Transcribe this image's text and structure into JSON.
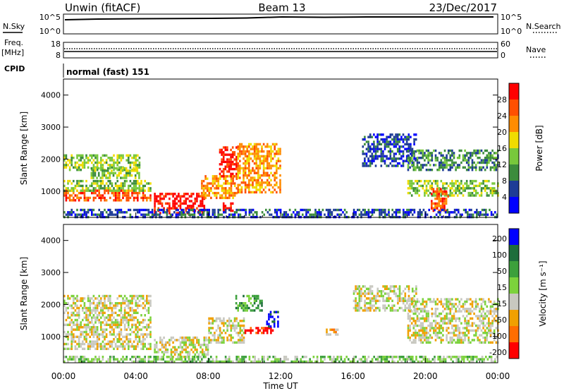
{
  "header": {
    "station": "Unwin (fitACF)",
    "beam": "Beam 13",
    "date": "23/Dec/2017"
  },
  "status_panels": {
    "nsky_label": "N.Sky",
    "nsearch_label": "N.Search",
    "nsky_ticks": [
      "10^5",
      "10^0"
    ],
    "nsearch_ticks": [
      "10^5",
      "10^0"
    ],
    "freq_label_top": "Freq.",
    "freq_label_unit": "[MHz]",
    "freq_ticks": [
      "18",
      "8"
    ],
    "nave_label": "Nave",
    "nave_ticks": [
      "60",
      "0"
    ],
    "cpid_label": "CPID",
    "cpid_value": "normal (fast) 151"
  },
  "chart_data": [
    {
      "type": "heatmap",
      "panel": "power",
      "ylabel": "Slant Range [km]",
      "colorbar_label": "Power [dB]",
      "x_range_hours": [
        0,
        24
      ],
      "y_range_km": [
        180,
        4500
      ],
      "y_ticks": [
        1000,
        2000,
        3000,
        4000
      ],
      "colorbar_ticks": [
        "4",
        "8",
        "12",
        "16",
        "20",
        "24",
        "28"
      ],
      "colors": [
        "#0000ff",
        "#1e3c96",
        "#3c8c3c",
        "#78c83c",
        "#f0dc00",
        "#ff8c00",
        "#ff5000",
        "#ff0000"
      ],
      "regions": [
        {
          "h0": 0.0,
          "h1": 4.2,
          "r0": 1650,
          "r1": 2150,
          "level": 3
        },
        {
          "h0": 1.5,
          "h1": 4.2,
          "r0": 1450,
          "r1": 1750,
          "level": 3
        },
        {
          "h0": 0.0,
          "h1": 4.8,
          "r0": 700,
          "r1": 1050,
          "level": 6
        },
        {
          "h0": 0.0,
          "h1": 4.8,
          "r0": 1050,
          "r1": 1350,
          "level": 3
        },
        {
          "h0": 5.0,
          "h1": 7.8,
          "r0": 350,
          "r1": 950,
          "level": 7
        },
        {
          "h0": 7.6,
          "h1": 9.6,
          "r0": 800,
          "r1": 1500,
          "level": 5
        },
        {
          "h0": 8.6,
          "h1": 9.6,
          "r0": 1500,
          "r1": 2400,
          "level": 7
        },
        {
          "h0": 8.8,
          "h1": 9.4,
          "r0": 400,
          "r1": 650,
          "level": 7
        },
        {
          "h0": 9.6,
          "h1": 12.0,
          "r0": 1000,
          "r1": 2500,
          "level": 5
        },
        {
          "h0": 16.5,
          "h1": 19.5,
          "r0": 1800,
          "r1": 2800,
          "level": 1
        },
        {
          "h0": 19.0,
          "h1": 24.0,
          "r0": 1700,
          "r1": 2300,
          "level": 2
        },
        {
          "h0": 19.0,
          "h1": 24.0,
          "r0": 850,
          "r1": 1350,
          "level": 3
        },
        {
          "h0": 20.3,
          "h1": 21.3,
          "r0": 400,
          "r1": 1100,
          "level": 6
        },
        {
          "h0": 0.0,
          "h1": 24.0,
          "r0": 200,
          "r1": 450,
          "level": 1
        }
      ]
    },
    {
      "type": "heatmap",
      "panel": "velocity",
      "ylabel": "Slant Range [km]",
      "xlabel": "Time UT",
      "colorbar_label": "Velocity [m s⁻¹]",
      "x_range_hours": [
        0,
        24
      ],
      "y_range_km": [
        180,
        4500
      ],
      "y_ticks": [
        1000,
        2000,
        3000,
        4000
      ],
      "x_ticks": [
        "00:00",
        "04:00",
        "08:00",
        "12:00",
        "16:00",
        "20:00",
        "00:00"
      ],
      "colorbar_ticks": [
        "200",
        "100",
        "50",
        "15",
        "-15",
        "-50",
        "-100",
        "-200"
      ],
      "colors": [
        "#0000ff",
        "#1e6e3c",
        "#3ca03c",
        "#7cd23c",
        "#c8c8c0",
        "#f0a000",
        "#ff6e00",
        "#ff0000"
      ],
      "regions": [
        {
          "h0": 0.0,
          "h1": 4.8,
          "r0": 600,
          "r1": 2300,
          "level": 4
        },
        {
          "h0": 5.0,
          "h1": 8.0,
          "r0": 400,
          "r1": 1000,
          "level": 4
        },
        {
          "h0": 8.0,
          "h1": 10.0,
          "r0": 800,
          "r1": 1600,
          "level": 4
        },
        {
          "h0": 10.0,
          "h1": 11.6,
          "r0": 1100,
          "r1": 1300,
          "level": 7
        },
        {
          "h0": 11.2,
          "h1": 11.9,
          "r0": 1350,
          "r1": 1800,
          "level": 0
        },
        {
          "h0": 9.5,
          "h1": 11.0,
          "r0": 1800,
          "r1": 2300,
          "level": 2
        },
        {
          "h0": 14.5,
          "h1": 15.2,
          "r0": 1050,
          "r1": 1250,
          "level": 5
        },
        {
          "h0": 16.0,
          "h1": 19.5,
          "r0": 1800,
          "r1": 2600,
          "level": 4
        },
        {
          "h0": 19.0,
          "h1": 24.0,
          "r0": 800,
          "r1": 2200,
          "level": 4
        },
        {
          "h0": 0.0,
          "h1": 24.0,
          "r0": 200,
          "r1": 400,
          "level": 3
        }
      ]
    }
  ]
}
